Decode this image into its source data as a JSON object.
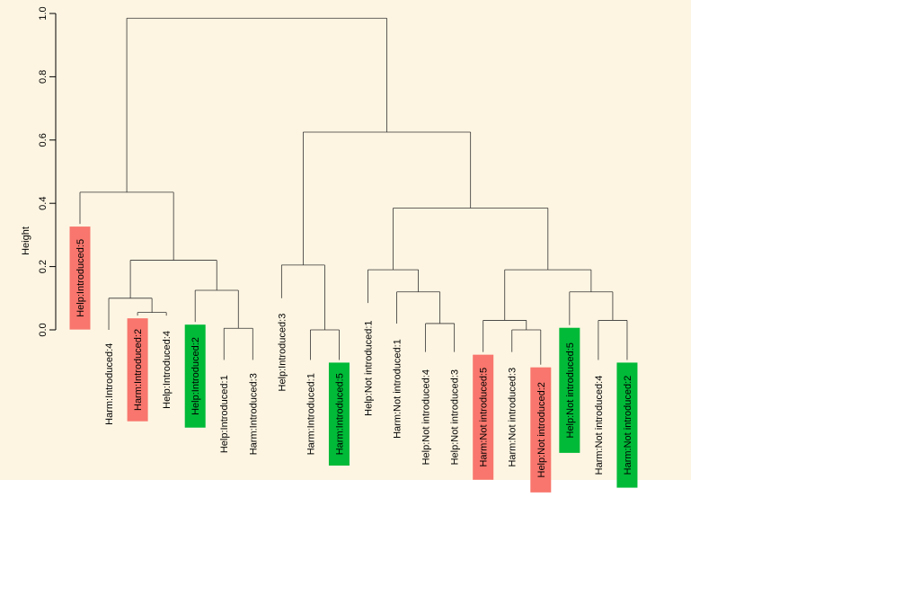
{
  "chart_data": {
    "type": "dendrogram",
    "ylabel": "Height",
    "ylim": [
      0,
      1
    ],
    "yticks": [
      0.0,
      0.2,
      0.4,
      0.6,
      0.8,
      1.0
    ],
    "ytick_labels": [
      "0.0",
      "0.2",
      "0.4",
      "0.6",
      "0.8",
      "1.0"
    ],
    "highlight_colors": {
      "red": "#f8766d",
      "green": "#00ba38"
    },
    "leaves": [
      {
        "label": "Help:Introduced:5",
        "y": 0.335,
        "highlight": "red"
      },
      {
        "label": "Harm:Introduced:4",
        "y": 0.0,
        "highlight": ""
      },
      {
        "label": "Harm:Introduced:2",
        "y": 0.045,
        "highlight": "red"
      },
      {
        "label": "Help:Introduced:4",
        "y": 0.045,
        "highlight": ""
      },
      {
        "label": "Help:Introduced:2",
        "y": 0.025,
        "highlight": "green"
      },
      {
        "label": "Help:Introduced:1",
        "y": -0.095,
        "highlight": ""
      },
      {
        "label": "Harm:Introduced:3",
        "y": -0.095,
        "highlight": ""
      },
      {
        "label": "Help:Introduced:3",
        "y": 0.1,
        "highlight": ""
      },
      {
        "label": "Harm:Introduced:1",
        "y": -0.095,
        "highlight": ""
      },
      {
        "label": "Harm:Introduced:5",
        "y": -0.095,
        "highlight": "green"
      },
      {
        "label": "Help:Not introduced:1",
        "y": 0.085,
        "highlight": ""
      },
      {
        "label": "Harm:Not introduced:1",
        "y": 0.02,
        "highlight": ""
      },
      {
        "label": "Help:Not introduced:4",
        "y": -0.07,
        "highlight": ""
      },
      {
        "label": "Help:Not introduced:3",
        "y": -0.07,
        "highlight": ""
      },
      {
        "label": "Harm:Not introduced:5",
        "y": -0.07,
        "highlight": "red"
      },
      {
        "label": "Harm:Not introduced:3",
        "y": -0.07,
        "highlight": ""
      },
      {
        "label": "Help:Not introduced:2",
        "y": -0.11,
        "highlight": "red"
      },
      {
        "label": "Help:Not introduced:5",
        "y": 0.015,
        "highlight": "green"
      },
      {
        "label": "Harm:Not introduced:4",
        "y": -0.095,
        "highlight": ""
      },
      {
        "label": "Harm:Not introduced:2",
        "y": -0.095,
        "highlight": "green"
      }
    ],
    "merges": [
      {
        "id": "m1",
        "left": "leaf:2",
        "right": "leaf:3",
        "height": 0.055
      },
      {
        "id": "m2",
        "left": "leaf:1",
        "right": "m1",
        "height": 0.1
      },
      {
        "id": "m3",
        "left": "leaf:5",
        "right": "leaf:6",
        "height": 0.005
      },
      {
        "id": "m4",
        "left": "leaf:4",
        "right": "m3",
        "height": 0.125
      },
      {
        "id": "m5",
        "left": "m2",
        "right": "m4",
        "height": 0.22
      },
      {
        "id": "m6",
        "left": "leaf:0",
        "right": "m5",
        "height": 0.435
      },
      {
        "id": "m7",
        "left": "leaf:8",
        "right": "leaf:9",
        "height": 0.0
      },
      {
        "id": "m8",
        "left": "leaf:7",
        "right": "m7",
        "height": 0.205
      },
      {
        "id": "m9",
        "left": "leaf:12",
        "right": "leaf:13",
        "height": 0.02
      },
      {
        "id": "m10",
        "left": "leaf:11",
        "right": "m9",
        "height": 0.12
      },
      {
        "id": "m11",
        "left": "leaf:10",
        "right": "m10",
        "height": 0.19
      },
      {
        "id": "m12",
        "left": "leaf:15",
        "right": "leaf:16",
        "height": 0.0
      },
      {
        "id": "m13",
        "left": "leaf:14",
        "right": "m12",
        "height": 0.03
      },
      {
        "id": "m14",
        "left": "leaf:18",
        "right": "leaf:19",
        "height": 0.03
      },
      {
        "id": "m15",
        "left": "leaf:17",
        "right": "m14",
        "height": 0.12
      },
      {
        "id": "m16",
        "left": "m13",
        "right": "m15",
        "height": 0.19
      },
      {
        "id": "m17",
        "left": "m11",
        "right": "m16",
        "height": 0.385
      },
      {
        "id": "m18",
        "left": "m8",
        "right": "m17",
        "height": 0.625
      },
      {
        "id": "m19",
        "left": "m6",
        "right": "m18",
        "height": 0.985
      }
    ]
  }
}
